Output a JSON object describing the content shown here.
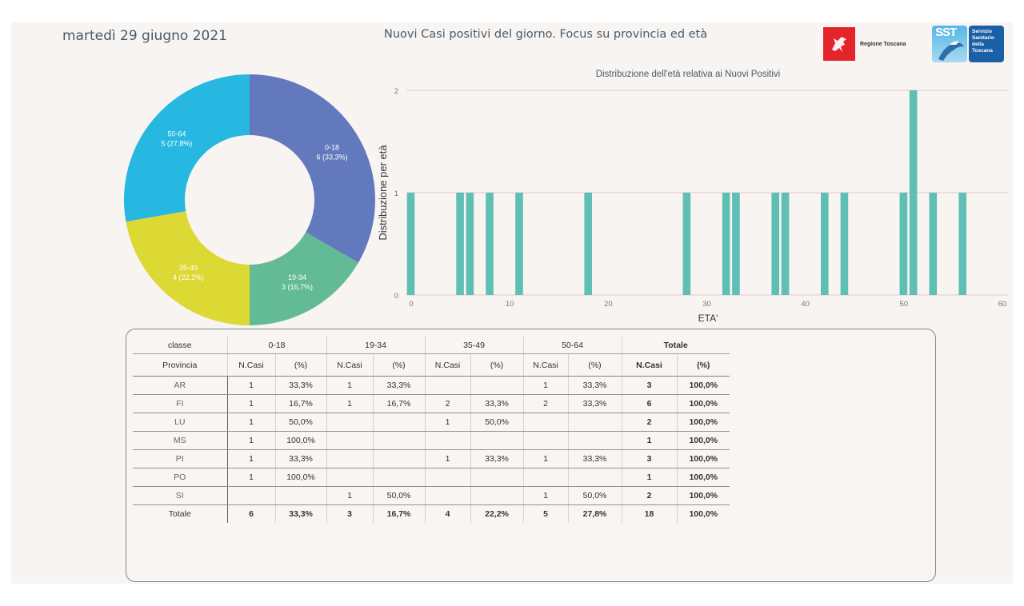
{
  "header": {
    "date": "martedì 29 giugno 2021",
    "title": "Nuovi Casi positivi del giorno. Focus su provincia ed età",
    "logos": {
      "regione": "Regione Toscana",
      "sst_short": "SST",
      "sst_full": [
        "Servizio",
        "Sanitario",
        "della",
        "Toscana"
      ]
    }
  },
  "colors": {
    "panel_bg": "#F8F4F1",
    "bar": "#5FBFB4",
    "grid": "#E5C7BE",
    "c0_18": "#6279BE",
    "c19_34": "#63BB96",
    "c35_49": "#DCD834",
    "c50_64": "#26B8E0"
  },
  "chart_data": [
    {
      "type": "pie",
      "variant": "donut",
      "title": "",
      "categories": [
        "0-18",
        "19-34",
        "35-49",
        "50-64"
      ],
      "values": [
        6,
        3,
        4,
        5
      ],
      "labels": [
        "6 (33,3%)",
        "3 (16,7%)",
        "4 (22,2%)",
        "5 (27,8%)"
      ],
      "percent": [
        33.3,
        16.7,
        22.2,
        27.8
      ]
    },
    {
      "type": "bar",
      "title": "Distribuzione dell'età relativa ai Nuovi Positivi",
      "xlabel": "ETA'",
      "ylabel": "Distribuzione per età",
      "x": [
        0,
        5,
        6,
        8,
        11,
        18,
        28,
        32,
        33,
        37,
        38,
        42,
        44,
        50,
        51,
        53,
        56
      ],
      "values": [
        1,
        1,
        1,
        1,
        1,
        1,
        1,
        1,
        1,
        1,
        1,
        1,
        1,
        1,
        2,
        1,
        1
      ],
      "xlim": [
        0,
        60
      ],
      "ylim": [
        0,
        2
      ],
      "xticks": [
        "0",
        "10",
        "20",
        "30",
        "40",
        "50",
        "60"
      ],
      "yticks": [
        "0",
        "1",
        "2"
      ],
      "grid": true
    }
  ],
  "table": {
    "header_row1": [
      "classe",
      "0-18",
      "19-34",
      "35-49",
      "50-64",
      "Totale"
    ],
    "header_row2": [
      "Provincia",
      "N.Casi",
      "(%)",
      "N.Casi",
      "(%)",
      "N.Casi",
      "(%)",
      "N.Casi",
      "(%)",
      "N.Casi",
      "(%)"
    ],
    "rows": [
      [
        "AR",
        "1",
        "33,3%",
        "1",
        "33,3%",
        "",
        "",
        "1",
        "33,3%",
        "3",
        "100,0%"
      ],
      [
        "FI",
        "1",
        "16,7%",
        "1",
        "16,7%",
        "2",
        "33,3%",
        "2",
        "33,3%",
        "6",
        "100,0%"
      ],
      [
        "LU",
        "1",
        "50,0%",
        "",
        "",
        "1",
        "50,0%",
        "",
        "",
        "2",
        "100,0%"
      ],
      [
        "MS",
        "1",
        "100,0%",
        "",
        "",
        "",
        "",
        "",
        "",
        "1",
        "100,0%"
      ],
      [
        "PI",
        "1",
        "33,3%",
        "",
        "",
        "1",
        "33,3%",
        "1",
        "33,3%",
        "3",
        "100,0%"
      ],
      [
        "PO",
        "1",
        "100,0%",
        "",
        "",
        "",
        "",
        "",
        "",
        "1",
        "100,0%"
      ],
      [
        "SI",
        "",
        "",
        "1",
        "50,0%",
        "",
        "",
        "1",
        "50,0%",
        "2",
        "100,0%"
      ]
    ],
    "total_row": [
      "Totale",
      "6",
      "33,3%",
      "3",
      "16,7%",
      "4",
      "22,2%",
      "5",
      "27,8%",
      "18",
      "100,0%"
    ]
  }
}
